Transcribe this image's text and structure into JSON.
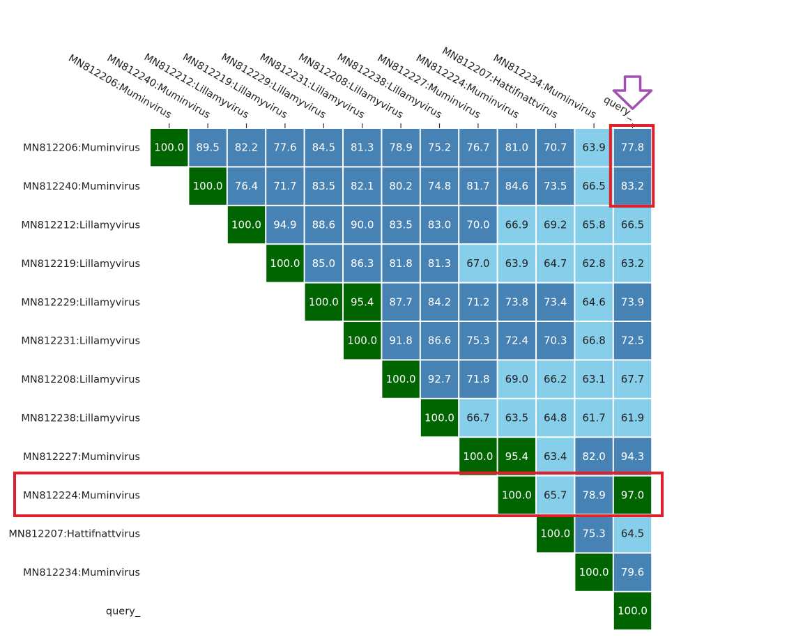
{
  "chart_data": {
    "type": "heatmap",
    "title": "",
    "xlabel": "",
    "ylabel": "",
    "labels": [
      "MN812206:Muminvirus",
      "MN812240:Muminvirus",
      "MN812212:Lillamyvirus",
      "MN812219:Lillamyvirus",
      "MN812229:Lillamyvirus",
      "MN812231:Lillamyvirus",
      "MN812208:Lillamyvirus",
      "MN812238:Lillamyvirus",
      "MN812227:Muminvirus",
      "MN812224:Muminvirus",
      "MN812207:Hattifnattvirus",
      "MN812234:Muminvirus",
      "query_"
    ],
    "column_labels": [
      "MN812206:Muminvirus",
      "MN812240:Muminvirus",
      "MN812212:Lillamyvirus",
      "MN812219:Lillamyvirus",
      "MN812229:Lillamyvirus",
      "MN812231:Lillamyvirus",
      "MN812208:Lillamyvirus",
      "MN812238:Lillamyvirus",
      "MN812227:Muminvirus",
      "MN812224:Muminvirus",
      "MN812207:Hattifnattvirus",
      "MN812234:Muminvirus",
      "query_"
    ],
    "matrix": [
      [
        "100.0",
        "89.5",
        "82.2",
        "77.6",
        "84.5",
        "81.3",
        "78.9",
        "75.2",
        "76.7",
        "81.0",
        "70.7",
        "63.9",
        "77.8"
      ],
      [
        null,
        "100.0",
        "76.4",
        "71.7",
        "83.5",
        "82.1",
        "80.2",
        "74.8",
        "81.7",
        "84.6",
        "73.5",
        "66.5",
        "83.2"
      ],
      [
        null,
        null,
        "100.0",
        "94.9",
        "88.6",
        "90.0",
        "83.5",
        "83.0",
        "70.0",
        "66.9",
        "69.2",
        "65.8",
        "66.5"
      ],
      [
        null,
        null,
        null,
        "100.0",
        "85.0",
        "86.3",
        "81.8",
        "81.3",
        "67.0",
        "63.9",
        "64.7",
        "62.8",
        "63.2"
      ],
      [
        null,
        null,
        null,
        null,
        "100.0",
        "95.4",
        "87.7",
        "84.2",
        "71.2",
        "73.8",
        "73.4",
        "64.6",
        "73.9"
      ],
      [
        null,
        null,
        null,
        null,
        null,
        "100.0",
        "91.8",
        "86.6",
        "75.3",
        "72.4",
        "70.3",
        "66.8",
        "72.5"
      ],
      [
        null,
        null,
        null,
        null,
        null,
        null,
        "100.0",
        "92.7",
        "71.8",
        "69.0",
        "66.2",
        "63.1",
        "67.7"
      ],
      [
        null,
        null,
        null,
        null,
        null,
        null,
        null,
        "100.0",
        "66.7",
        "63.5",
        "64.8",
        "61.7",
        "61.9"
      ],
      [
        null,
        null,
        null,
        null,
        null,
        null,
        null,
        null,
        "100.0",
        "95.4",
        "63.4",
        "82.0",
        "94.3"
      ],
      [
        null,
        null,
        null,
        null,
        null,
        null,
        null,
        null,
        null,
        "100.0",
        "65.7",
        "78.9",
        "97.0"
      ],
      [
        null,
        null,
        null,
        null,
        null,
        null,
        null,
        null,
        null,
        null,
        "100.0",
        "75.3",
        "64.5"
      ],
      [
        null,
        null,
        null,
        null,
        null,
        null,
        null,
        null,
        null,
        null,
        null,
        "100.0",
        "79.6"
      ],
      [
        null,
        null,
        null,
        null,
        null,
        null,
        null,
        null,
        null,
        null,
        null,
        null,
        "100.0"
      ]
    ],
    "color_bins": [
      {
        "min": 95,
        "color": "#006400",
        "text": "#ffffff"
      },
      {
        "min": 70,
        "color": "#4682b4",
        "text": "#ffffff"
      },
      {
        "min": 0,
        "color": "#87ceeb",
        "text": "#222222"
      }
    ],
    "highlights": {
      "row_box_row": 9,
      "column_box": {
        "column": 12,
        "rows": [
          0,
          1
        ]
      },
      "arrow_column": 12,
      "box_color": "#e0202a",
      "arrow_color": "#a050b0"
    }
  }
}
